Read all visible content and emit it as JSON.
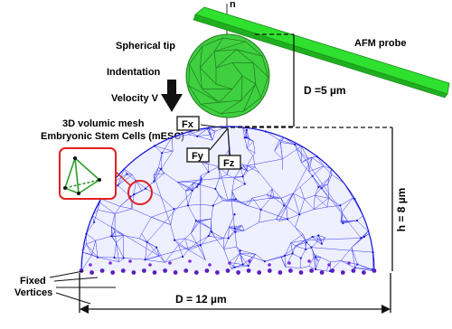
{
  "labels": {
    "axis_n": "n",
    "probe": "AFM probe",
    "tip": "Spherical tip",
    "indentation": "Indentation",
    "velocity": "Velocity V",
    "mesh_line1": "3D volumic mesh",
    "mesh_line2": "Embryonic Stem Cells (mESC)",
    "fx": "Fx",
    "fy": "Fy",
    "fz": "Fz",
    "d_tip": "D =5 µm",
    "height": "h = 8 µm",
    "d_cell": "D = 12 µm",
    "fixed1": "Fixed",
    "fixed2": "Vertices"
  },
  "colors": {
    "probe_green": "#27d827",
    "tip_green": "#33cc33",
    "mesh_blue": "#1a1aff",
    "vertex_purple": "#6a22c8",
    "highlight_red": "#e02020",
    "tetra_green": "#2e9e2e"
  }
}
